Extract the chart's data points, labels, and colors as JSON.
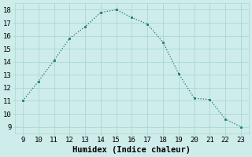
{
  "x": [
    9,
    10,
    11,
    12,
    13,
    14,
    15,
    16,
    17,
    18,
    19,
    20,
    21,
    22,
    23
  ],
  "y": [
    11.0,
    12.5,
    14.1,
    15.8,
    16.7,
    17.8,
    18.0,
    17.4,
    16.9,
    15.5,
    13.1,
    11.2,
    11.1,
    9.6,
    9.0
  ],
  "line_color": "#1a7a6a",
  "marker": "s",
  "marker_size": 2.0,
  "bg_color": "#ceecea",
  "grid_color": "#a8d8d4",
  "xlabel": "Humidex (Indice chaleur)",
  "xlabel_fontsize": 7.5,
  "xlim": [
    8.5,
    23.5
  ],
  "ylim": [
    8.5,
    18.5
  ],
  "xticks": [
    9,
    10,
    11,
    12,
    13,
    14,
    15,
    16,
    17,
    18,
    19,
    20,
    21,
    22,
    23
  ],
  "yticks": [
    9,
    10,
    11,
    12,
    13,
    14,
    15,
    16,
    17,
    18
  ],
  "tick_fontsize": 6.5,
  "linewidth": 0.9
}
